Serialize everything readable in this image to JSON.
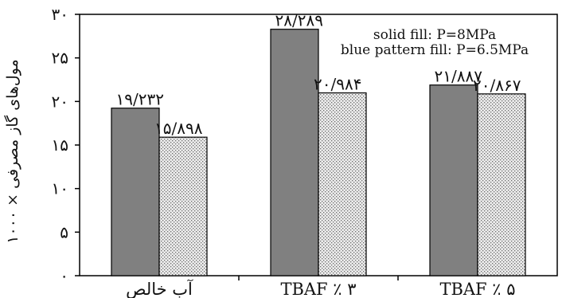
{
  "chart_data": {
    "type": "bar",
    "title": "",
    "xlabel": "",
    "ylabel": "مول‌های گاز مصرفی × ۱۰۰۰",
    "ylim": [
      0,
      30
    ],
    "yticks": [
      0,
      5,
      10,
      15,
      20,
      25,
      30
    ],
    "ytick_labels": [
      "۰",
      "۵",
      "۱۰",
      "۱۵",
      "۲۰",
      "۲۵",
      "۳۰"
    ],
    "categories": [
      "آب خالص",
      "TBAF ٪ ۳",
      "TBAF ٪ ۵"
    ],
    "series": [
      {
        "name": "solid fill: P=8MPa",
        "values": [
          19.232,
          28.289,
          21.887
        ],
        "labels": [
          "۱۹/۲۳۲",
          "۲۸/۲۸۹",
          "۲۱/۸۸۷"
        ],
        "color": "#808080"
      },
      {
        "name": "blue pattern fill: P=6.5MPa",
        "values": [
          15.898,
          20.984,
          20.867
        ],
        "labels": [
          "۱۵/۸۹۸",
          "۲۰/۹۸۴",
          "۲۰/۸۶۷"
        ],
        "color": "#c8c8c8"
      }
    ],
    "legend": [
      "solid fill: P=8MPa",
      "blue pattern fill: P=6.5MPa"
    ],
    "legend_position": "top-right",
    "grid": false
  }
}
